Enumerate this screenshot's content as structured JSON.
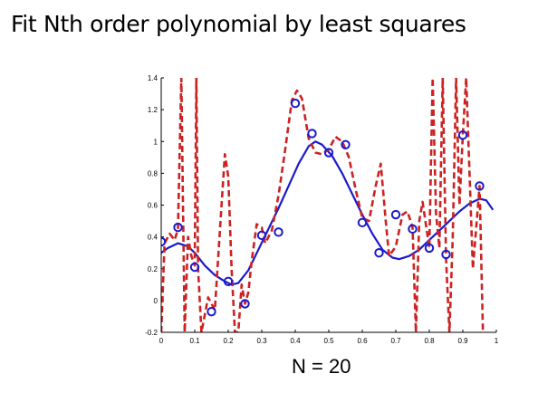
{
  "title": "Fit Nth order polynomial by least squares",
  "caption": "N = 20",
  "chart_data": {
    "type": "scatter",
    "title": "",
    "xlabel": "",
    "ylabel": "",
    "xlim": [
      0,
      1
    ],
    "ylim": [
      -0.2,
      1.4
    ],
    "x_ticks": [
      "0",
      "0.1",
      "0.2",
      "0.3",
      "0.4",
      "0.5",
      "0.6",
      "0.7",
      "0.8",
      "0.9",
      "1"
    ],
    "y_ticks": [
      "-0.2",
      "0",
      "0.2",
      "0.4",
      "0.6",
      "0.8",
      "1",
      "1.2",
      "1.4"
    ],
    "grid": false,
    "series": [
      {
        "kind": "points",
        "color": "#1a1acc",
        "marker": "circle",
        "x": [
          0.0,
          0.05,
          0.1,
          0.15,
          0.2,
          0.25,
          0.3,
          0.35,
          0.4,
          0.45,
          0.5,
          0.55,
          0.6,
          0.65,
          0.7,
          0.75,
          0.8,
          0.85,
          0.9,
          0.95
        ],
        "y": [
          0.37,
          0.46,
          0.21,
          -0.07,
          0.12,
          -0.02,
          0.41,
          0.43,
          1.24,
          1.05,
          0.93,
          0.98,
          0.49,
          0.3,
          0.54,
          0.45,
          0.33,
          0.29,
          1.04,
          0.72
        ]
      },
      {
        "kind": "line",
        "color": "#1a1acc",
        "style": "solid",
        "x": [
          0.0,
          0.02,
          0.05,
          0.08,
          0.1,
          0.13,
          0.16,
          0.19,
          0.21,
          0.23,
          0.26,
          0.29,
          0.32,
          0.35,
          0.38,
          0.41,
          0.44,
          0.46,
          0.48,
          0.51,
          0.54,
          0.57,
          0.6,
          0.63,
          0.66,
          0.69,
          0.71,
          0.74,
          0.77,
          0.8,
          0.83,
          0.86,
          0.89,
          0.92,
          0.95,
          0.97,
          0.99
        ],
        "y": [
          0.3,
          0.33,
          0.36,
          0.34,
          0.3,
          0.22,
          0.16,
          0.12,
          0.1,
          0.11,
          0.19,
          0.32,
          0.45,
          0.58,
          0.72,
          0.86,
          0.97,
          1.0,
          0.98,
          0.91,
          0.8,
          0.67,
          0.54,
          0.42,
          0.32,
          0.27,
          0.26,
          0.28,
          0.32,
          0.38,
          0.44,
          0.5,
          0.56,
          0.61,
          0.64,
          0.63,
          0.57
        ]
      },
      {
        "kind": "line",
        "color": "#cc2222",
        "style": "dashed",
        "x": [
          0.0,
          0.01,
          0.025,
          0.04,
          0.05,
          0.06,
          0.07,
          0.08,
          0.09,
          0.1,
          0.105,
          0.11,
          0.12,
          0.14,
          0.16,
          0.18,
          0.19,
          0.2,
          0.21,
          0.22,
          0.23,
          0.24,
          0.25,
          0.26,
          0.27,
          0.285,
          0.3,
          0.31,
          0.33,
          0.35,
          0.37,
          0.39,
          0.405,
          0.42,
          0.44,
          0.46,
          0.48,
          0.5,
          0.52,
          0.54,
          0.56,
          0.58,
          0.6,
          0.62,
          0.64,
          0.655,
          0.67,
          0.68,
          0.7,
          0.72,
          0.735,
          0.75,
          0.76,
          0.77,
          0.78,
          0.8,
          0.81,
          0.82,
          0.83,
          0.84,
          0.85,
          0.86,
          0.87,
          0.88,
          0.89,
          0.9,
          0.91,
          0.92,
          0.93,
          0.95,
          0.96
        ],
        "y": [
          -0.2,
          0.36,
          0.42,
          0.38,
          0.45,
          1.4,
          -0.2,
          0.4,
          0.28,
          0.22,
          1.4,
          0.2,
          -0.2,
          0.02,
          -0.06,
          0.6,
          0.92,
          0.78,
          0.2,
          -0.2,
          -0.2,
          0.1,
          -0.02,
          0.05,
          0.25,
          0.48,
          0.46,
          0.36,
          0.44,
          0.66,
          0.95,
          1.26,
          1.32,
          1.27,
          1.02,
          0.93,
          0.92,
          0.95,
          1.03,
          1.0,
          0.9,
          0.7,
          0.52,
          0.5,
          0.72,
          0.86,
          0.5,
          0.28,
          0.34,
          0.54,
          0.56,
          0.46,
          -0.2,
          0.5,
          0.62,
          0.33,
          1.4,
          0.55,
          0.33,
          1.4,
          0.26,
          -0.2,
          0.4,
          1.4,
          0.6,
          1.04,
          1.4,
          0.8,
          0.2,
          0.72,
          -0.2
        ]
      }
    ]
  }
}
